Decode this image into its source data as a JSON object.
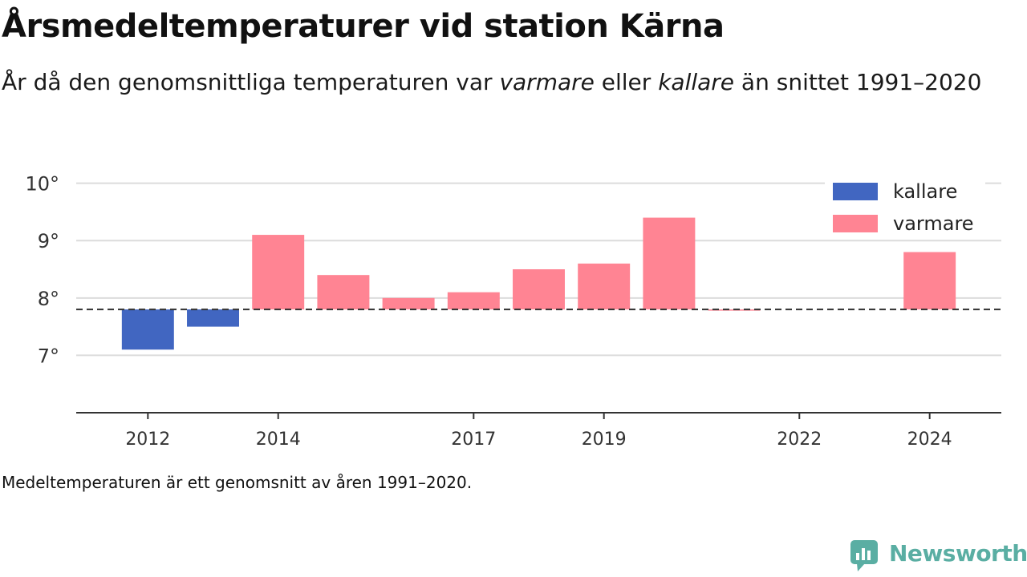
{
  "title": "Årsmedeltemperaturer vid station Kärna",
  "subtitle": {
    "part1": "År då den genomsnittliga temperaturen var ",
    "em1": "varmare",
    "part2": " eller ",
    "em2": "kallare",
    "part3": " än snittet 1991–2020"
  },
  "footnote": "Medeltemperaturen är ett genomsnitt av åren 1991–2020.",
  "brand": {
    "name": "Newsworthy",
    "color": "#5aaea3"
  },
  "chart_data": {
    "type": "bar",
    "baseline": 7.8,
    "x": [
      2012,
      2013,
      2014,
      2015,
      2016,
      2017,
      2018,
      2019,
      2020,
      2021,
      2024
    ],
    "values": [
      7.1,
      7.5,
      9.1,
      8.4,
      8.0,
      8.1,
      8.5,
      8.6,
      9.4,
      7.8,
      8.8
    ],
    "xticks": [
      2012,
      2014,
      2017,
      2019,
      2022,
      2024
    ],
    "xlim": [
      2010.9,
      2025.1
    ],
    "ylim": [
      6.0,
      10.4
    ],
    "yticks": [
      {
        "value": 7,
        "label": "7°"
      },
      {
        "value": 8,
        "label": "8°"
      },
      {
        "value": 9,
        "label": "9°"
      },
      {
        "value": 10,
        "label": "10°"
      }
    ],
    "grid": true,
    "legend": {
      "position": "top-right",
      "entries": [
        {
          "key": "colder",
          "label": "kallare",
          "color": "#4166c1"
        },
        {
          "key": "warmer",
          "label": "varmare",
          "color": "#ff8493"
        }
      ]
    }
  }
}
